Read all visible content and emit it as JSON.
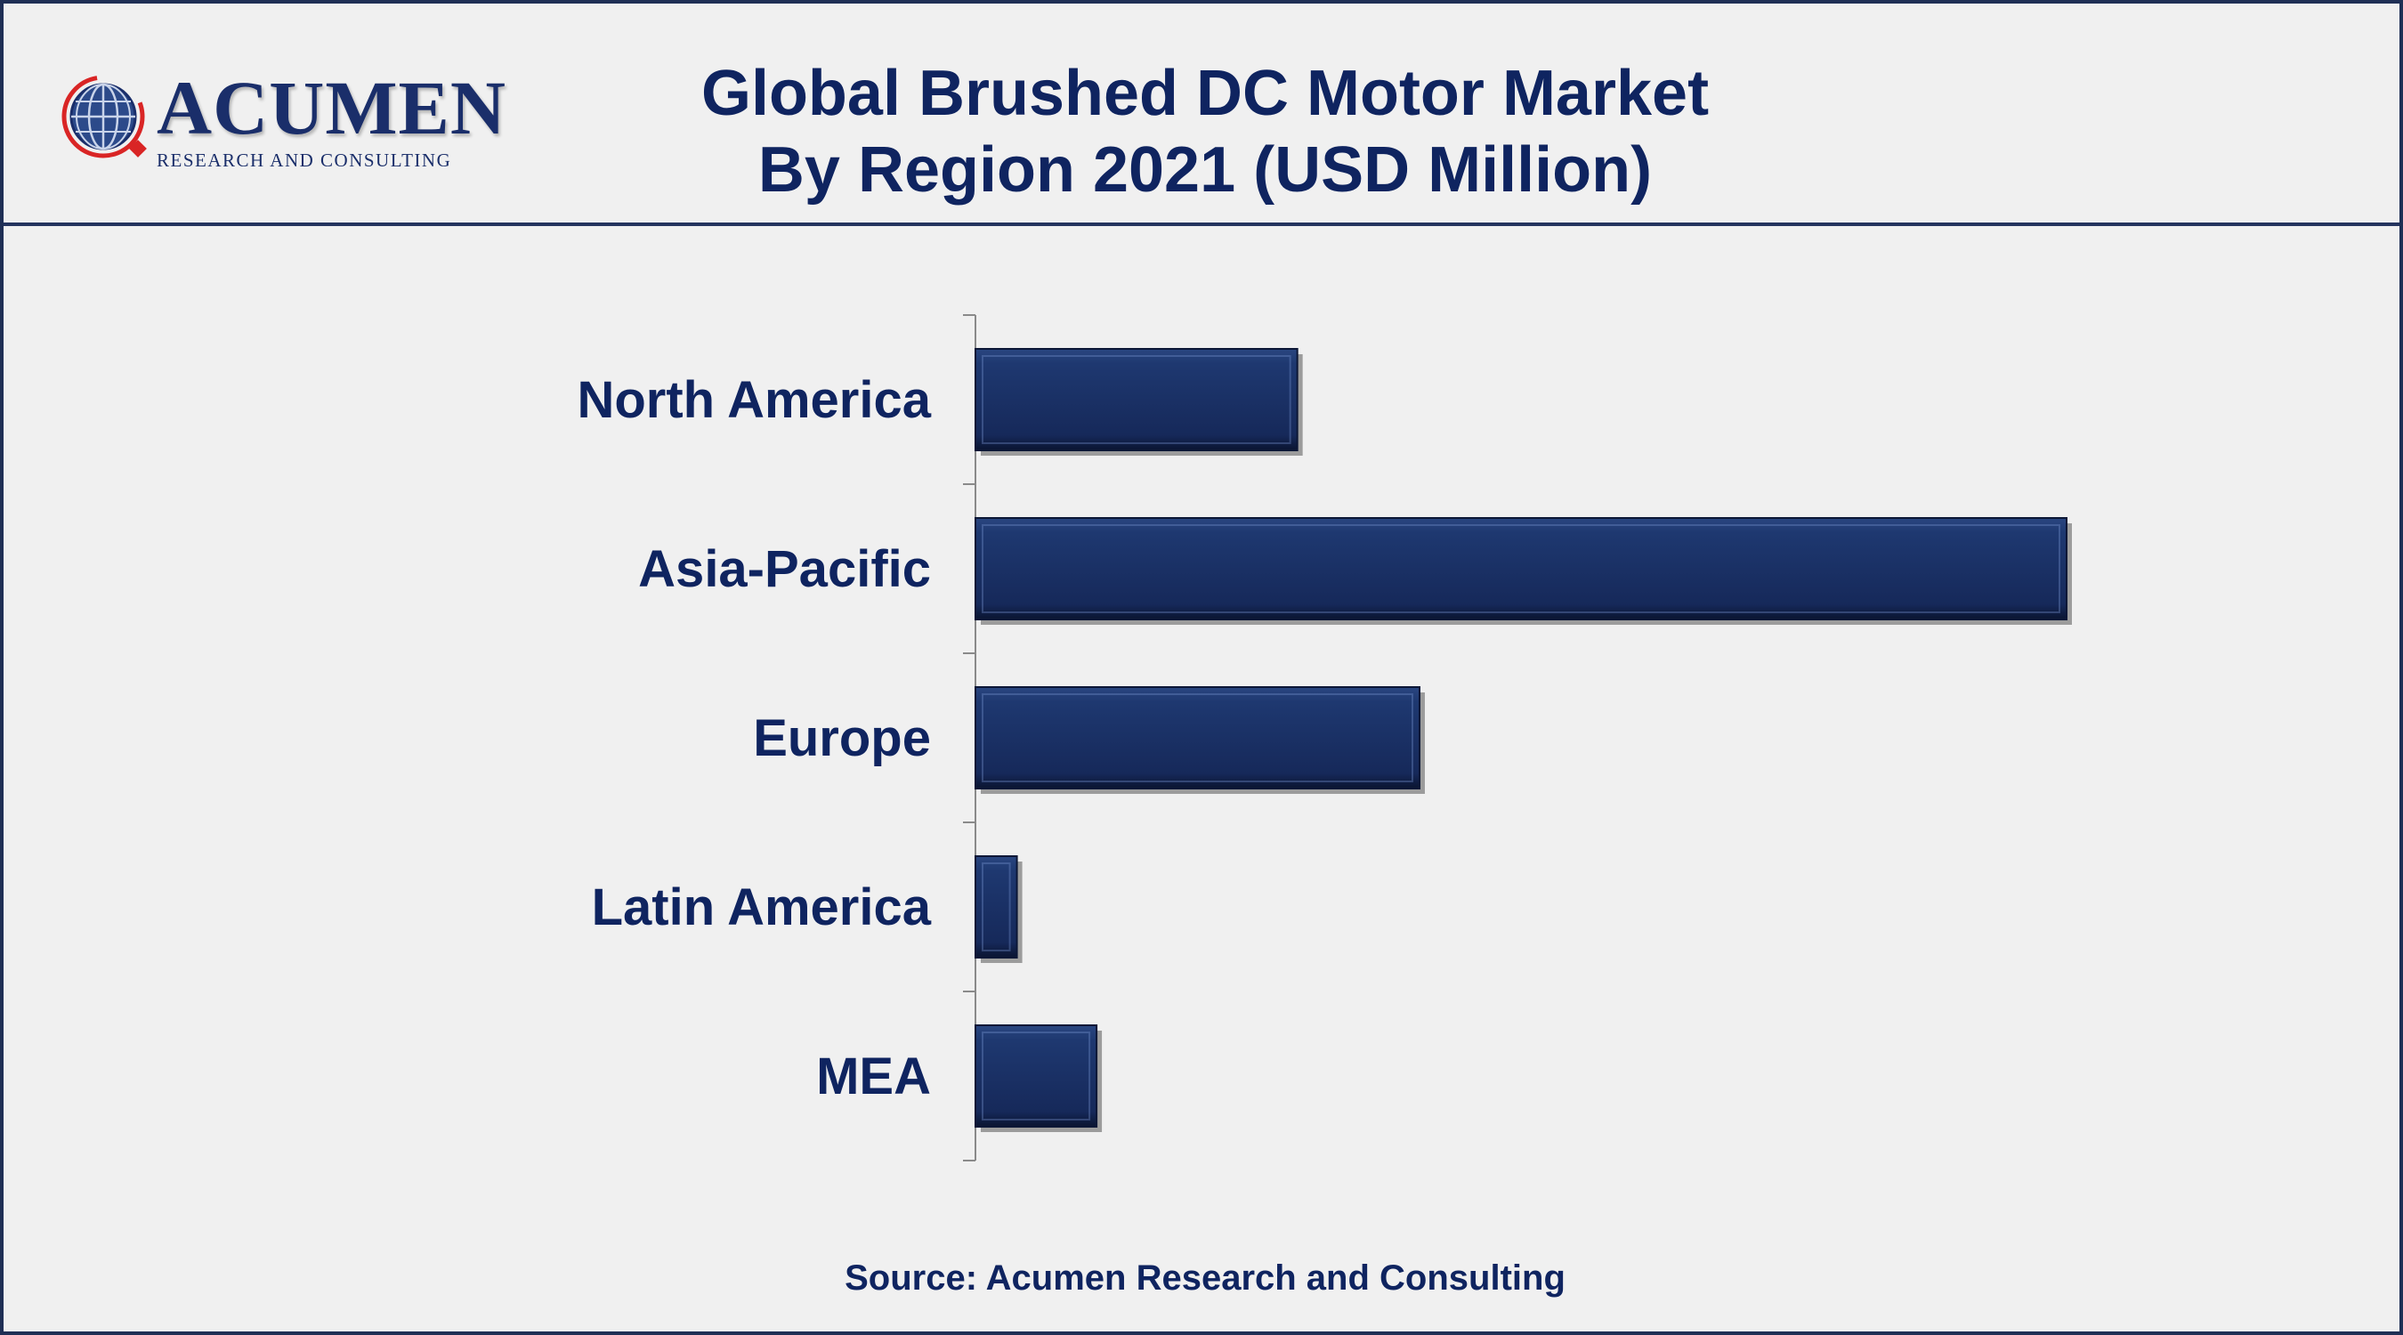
{
  "brand": {
    "name": "ACUMEN",
    "tagline": "RESEARCH AND CONSULTING"
  },
  "title_line1": "Global Brushed DC Motor Market",
  "title_line2": "By Region 2021 (USD Million)",
  "source": "Source: Acumen Research and Consulting",
  "colors": {
    "bar": "#1b3163",
    "bar_dark": "#0c1736",
    "text": "#0f2460",
    "border": "#1f2f55"
  },
  "chart_data": {
    "type": "bar",
    "orientation": "horizontal",
    "title": "Global Brushed DC Motor Market By Region 2021 (USD Million)",
    "categories": [
      "North America",
      "Asia-Pacific",
      "Europe",
      "Latin America",
      "MEA"
    ],
    "values": [
      29.5,
      100,
      40.7,
      3.8,
      11.1
    ],
    "xlim": [
      0,
      100
    ],
    "grid": false,
    "legend": "none"
  }
}
